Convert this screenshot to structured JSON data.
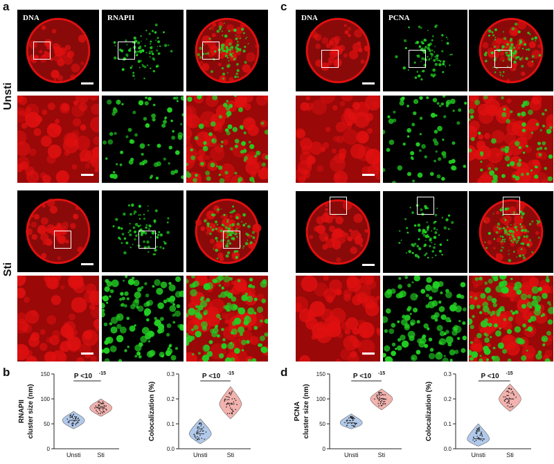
{
  "panels": {
    "a": "a",
    "b": "b",
    "c": "c",
    "d": "d"
  },
  "row_labels": {
    "unsti": "Unsti",
    "sti": "Sti"
  },
  "channel_headers": {
    "a_dna": "DNA",
    "a_rnapii": "RNAPII",
    "c_dna": "DNA",
    "c_pcna": "PCNA"
  },
  "colors": {
    "dna": "#e01010",
    "signal": "#22d022",
    "unsti_violin": "#a9c4e8",
    "sti_violin": "#f2aaa6"
  },
  "chart_data": [
    {
      "type": "violin",
      "panel": "b",
      "ylabel": "RNAPII\ncluster size (nm)",
      "categories": [
        "Unsti",
        "Sti"
      ],
      "yticks": [
        0,
        50,
        100,
        150
      ],
      "ylim": [
        0,
        150
      ],
      "series": [
        {
          "category": "Unsti",
          "median": 57,
          "min": 40,
          "max": 75,
          "color": "#a9c4e8"
        },
        {
          "category": "Sti",
          "median": 82,
          "min": 65,
          "max": 100,
          "color": "#f2aaa6"
        }
      ],
      "annotation": "P <10",
      "annotation_exp": "-15"
    },
    {
      "type": "violin",
      "panel": "b",
      "ylabel": "Colocalization (%)",
      "categories": [
        "Unsti",
        "Sti"
      ],
      "yticks": [
        0.0,
        0.1,
        0.2,
        0.3
      ],
      "ylim": [
        0,
        0.3
      ],
      "series": [
        {
          "category": "Unsti",
          "median": 0.06,
          "min": 0.02,
          "max": 0.12,
          "color": "#a9c4e8"
        },
        {
          "category": "Sti",
          "median": 0.18,
          "min": 0.12,
          "max": 0.25,
          "color": "#f2aaa6"
        }
      ],
      "annotation": "P <10",
      "annotation_exp": "-15"
    },
    {
      "type": "violin",
      "panel": "d",
      "ylabel": "PCNA\ncluster size (nm)",
      "categories": [
        "Unsti",
        "Sti"
      ],
      "yticks": [
        0,
        50,
        100,
        150
      ],
      "ylim": [
        0,
        150
      ],
      "series": [
        {
          "category": "Unsti",
          "median": 52,
          "min": 40,
          "max": 70,
          "color": "#a9c4e8"
        },
        {
          "category": "Sti",
          "median": 100,
          "min": 78,
          "max": 120,
          "color": "#f2aaa6"
        }
      ],
      "annotation": "P <10",
      "annotation_exp": "-15"
    },
    {
      "type": "violin",
      "panel": "d",
      "ylabel": "Colocalization (%)",
      "categories": [
        "Unsti",
        "Sti"
      ],
      "yticks": [
        0.0,
        0.1,
        0.2,
        0.3
      ],
      "ylim": [
        0,
        0.3
      ],
      "series": [
        {
          "category": "Unsti",
          "median": 0.04,
          "min": 0.01,
          "max": 0.1,
          "color": "#a9c4e8"
        },
        {
          "category": "Sti",
          "median": 0.2,
          "min": 0.15,
          "max": 0.26,
          "color": "#f2aaa6"
        }
      ],
      "annotation": "P <10",
      "annotation_exp": "-15"
    }
  ]
}
